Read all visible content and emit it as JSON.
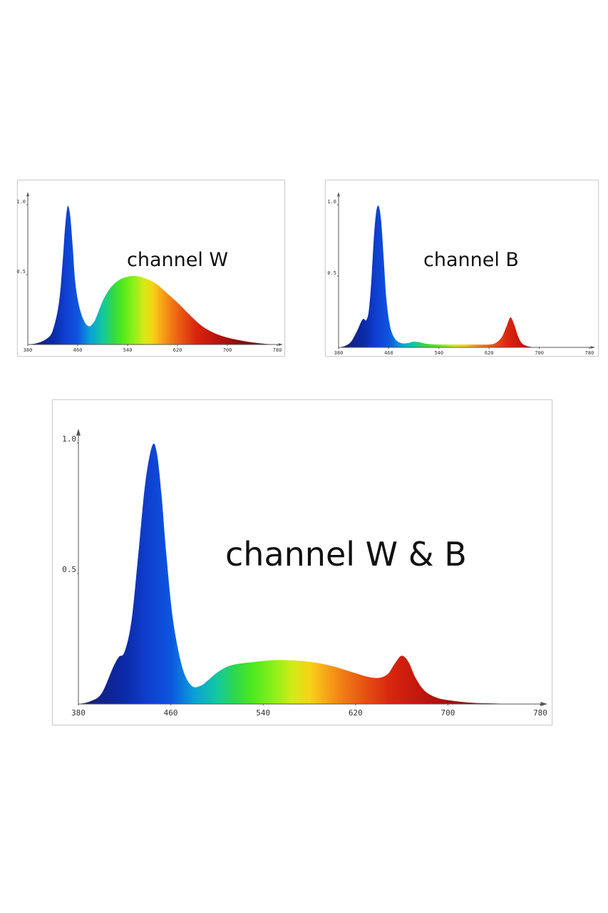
{
  "chart_data": [
    {
      "type": "area",
      "title": "channel W",
      "xlim": [
        380,
        780
      ],
      "ylim": [
        0,
        1
      ],
      "xticks": [
        "380",
        "460",
        "540",
        "620",
        "700",
        "780"
      ],
      "yticks": [
        "0.5",
        "1.0"
      ],
      "fill": "visible-spectrum gradient",
      "grid": false,
      "x": [
        380,
        395,
        410,
        420,
        430,
        436,
        440,
        444,
        448,
        452,
        456,
        462,
        470,
        478,
        486,
        492,
        500,
        510,
        520,
        530,
        540,
        550,
        560,
        570,
        580,
        590,
        600,
        620,
        640,
        660,
        680,
        700,
        720,
        740,
        760,
        780
      ],
      "y": [
        0,
        0.01,
        0.04,
        0.1,
        0.3,
        0.6,
        0.85,
        0.99,
        0.92,
        0.7,
        0.45,
        0.28,
        0.17,
        0.13,
        0.16,
        0.22,
        0.31,
        0.39,
        0.44,
        0.47,
        0.485,
        0.49,
        0.485,
        0.47,
        0.45,
        0.42,
        0.38,
        0.3,
        0.21,
        0.13,
        0.08,
        0.05,
        0.03,
        0.015,
        0.005,
        0
      ]
    },
    {
      "type": "area",
      "title": "channel B",
      "xlim": [
        380,
        780
      ],
      "ylim": [
        0,
        1
      ],
      "xticks": [
        "380",
        "460",
        "540",
        "620",
        "700",
        "780"
      ],
      "yticks": [
        "0.5",
        "1.0"
      ],
      "fill": "visible-spectrum gradient",
      "grid": false,
      "x": [
        380,
        390,
        400,
        410,
        416,
        420,
        424,
        428,
        432,
        436,
        440,
        444,
        448,
        452,
        456,
        462,
        470,
        480,
        490,
        500,
        510,
        520,
        540,
        560,
        580,
        600,
        620,
        630,
        640,
        648,
        654,
        660,
        666,
        672,
        680,
        690,
        700
      ],
      "y": [
        0,
        0.01,
        0.04,
        0.12,
        0.18,
        0.2,
        0.19,
        0.25,
        0.45,
        0.75,
        0.95,
        0.99,
        0.88,
        0.62,
        0.35,
        0.15,
        0.06,
        0.03,
        0.03,
        0.04,
        0.035,
        0.025,
        0.02,
        0.02,
        0.02,
        0.02,
        0.02,
        0.03,
        0.07,
        0.15,
        0.21,
        0.16,
        0.08,
        0.03,
        0.01,
        0.002,
        0
      ]
    },
    {
      "type": "area",
      "title": "channel W & B",
      "xlim": [
        380,
        780
      ],
      "ylim": [
        0,
        1
      ],
      "xticks": [
        "380",
        "460",
        "540",
        "620",
        "700",
        "780"
      ],
      "yticks": [
        "0.5",
        "1.0"
      ],
      "fill": "visible-spectrum gradient",
      "grid": false,
      "x": [
        380,
        390,
        400,
        410,
        415,
        420,
        426,
        432,
        438,
        444,
        448,
        452,
        456,
        462,
        470,
        478,
        486,
        492,
        500,
        510,
        520,
        530,
        540,
        550,
        560,
        570,
        580,
        590,
        600,
        610,
        620,
        630,
        640,
        648,
        654,
        660,
        666,
        672,
        680,
        690,
        700,
        720,
        740,
        760
      ],
      "y": [
        0,
        0.01,
        0.04,
        0.14,
        0.18,
        0.2,
        0.32,
        0.58,
        0.85,
        0.99,
        0.96,
        0.8,
        0.58,
        0.32,
        0.14,
        0.07,
        0.07,
        0.09,
        0.12,
        0.145,
        0.155,
        0.16,
        0.165,
        0.168,
        0.168,
        0.166,
        0.162,
        0.155,
        0.145,
        0.132,
        0.118,
        0.105,
        0.1,
        0.115,
        0.155,
        0.185,
        0.16,
        0.1,
        0.05,
        0.025,
        0.015,
        0.005,
        0.002,
        0
      ]
    }
  ]
}
